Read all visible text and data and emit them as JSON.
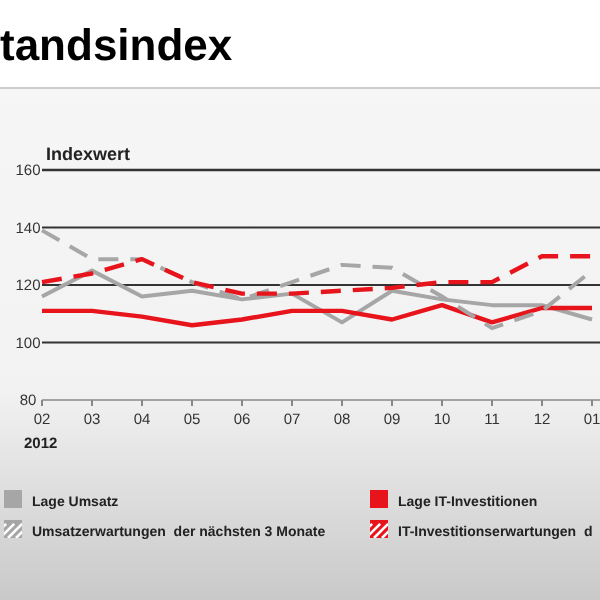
{
  "chart_data": {
    "type": "line",
    "title": "tandsindex",
    "ylabel": "Indexwert",
    "categories": [
      "02",
      "03",
      "04",
      "05",
      "06",
      "07",
      "08",
      "09",
      "10",
      "11",
      "12",
      "01"
    ],
    "series": [
      {
        "name": "Lage Umsatz",
        "color": "#a6a6a6",
        "line_style": "solid",
        "values": [
          116,
          125,
          116,
          118,
          115,
          117,
          107,
          118,
          115,
          113,
          113,
          108
        ]
      },
      {
        "name": "Lage IT-Investitionen",
        "color": "#e8141c",
        "line_style": "solid",
        "values": [
          111,
          111,
          109,
          106,
          108,
          111,
          111,
          108,
          113,
          107,
          112,
          112
        ]
      },
      {
        "name": "Umsatzerwartungen  der nächsten 3 Monate",
        "color": "#a6a6a6",
        "line_style": "dashed",
        "values": [
          139,
          129,
          129,
          121,
          115,
          121,
          127,
          126,
          116,
          105,
          111,
          125
        ]
      },
      {
        "name": "IT-Investitionserwartungen  d",
        "color": "#e8141c",
        "line_style": "dashed",
        "values": [
          121,
          124,
          129,
          121,
          117,
          117,
          118,
          119,
          121,
          121,
          130,
          130
        ]
      }
    ],
    "ylim": [
      80,
      160
    ],
    "yticks": [
      80,
      100,
      120,
      140,
      160
    ],
    "grid": "y",
    "legend": "bottom",
    "marker": "none",
    "annotations": [
      "2012"
    ]
  }
}
